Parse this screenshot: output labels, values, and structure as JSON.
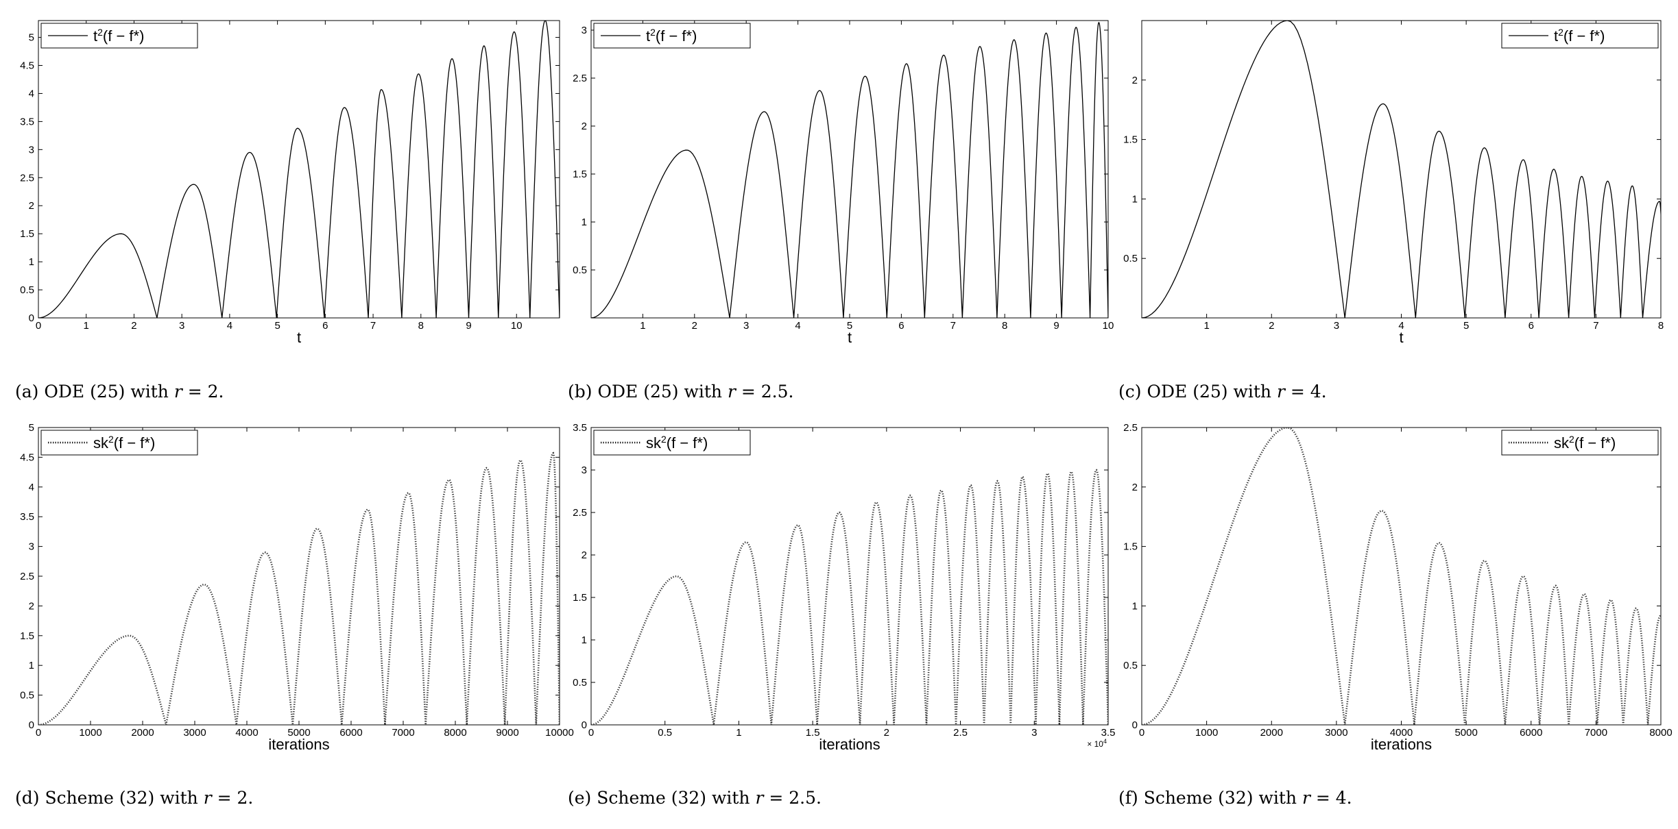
{
  "chart_data": [
    {
      "type": "line",
      "id": "a",
      "caption": {
        "pre": "(a) ODE (25) with ",
        "r": "r",
        "post": " = 2."
      },
      "xlabel": "t",
      "xlim": [
        0,
        10.9
      ],
      "ylim": [
        0,
        5.3
      ],
      "xticks": [
        0,
        1,
        2,
        3,
        4,
        5,
        6,
        7,
        8,
        9,
        10
      ],
      "xticklabels": [
        "0",
        "1",
        "2",
        "3",
        "4",
        "5",
        "6",
        "7",
        "8",
        "9",
        "10"
      ],
      "yticks": [
        0,
        0.5,
        1,
        1.5,
        2,
        2.5,
        3,
        3.5,
        4,
        4.5,
        5
      ],
      "yticklabels": [
        "0",
        "0.5",
        "1",
        "1.5",
        "2",
        "2.5",
        "3",
        "3.5",
        "4",
        "4.5",
        "5"
      ],
      "legend": {
        "position": "top-left",
        "base": "t",
        "sup": "2",
        "rest": "(f − f*)",
        "style": "solid"
      },
      "series": [
        {
          "zeros": [
            0,
            2.48,
            3.84,
            4.98,
            5.98,
            6.9,
            7.6,
            8.32,
            9.0,
            9.62,
            10.28,
            10.9
          ],
          "peaks": [
            [
              1.73,
              1.5
            ],
            [
              3.25,
              2.38
            ],
            [
              4.42,
              2.95
            ],
            [
              5.42,
              3.38
            ],
            [
              6.4,
              3.75
            ],
            [
              7.17,
              4.07
            ],
            [
              7.95,
              4.35
            ],
            [
              8.65,
              4.62
            ],
            [
              9.32,
              4.85
            ],
            [
              9.95,
              5.1
            ],
            [
              10.6,
              5.3
            ]
          ]
        }
      ]
    },
    {
      "type": "line",
      "id": "b",
      "caption": {
        "pre": "(b) ODE (25) with ",
        "r": "r",
        "post": " = 2.5."
      },
      "xlabel": "t",
      "xlim": [
        0,
        10
      ],
      "ylim": [
        0,
        3.1
      ],
      "xticks": [
        1,
        2,
        3,
        4,
        5,
        6,
        7,
        8,
        9,
        10
      ],
      "xticklabels": [
        "1",
        "2",
        "3",
        "4",
        "5",
        "6",
        "7",
        "8",
        "9",
        "10"
      ],
      "yticks": [
        0.5,
        1,
        1.5,
        2,
        2.5,
        3
      ],
      "yticklabels": [
        "0.5",
        "1",
        "1.5",
        "2",
        "2.5",
        "3"
      ],
      "legend": {
        "position": "top-left",
        "base": "t",
        "sup": "2",
        "rest": "(f − f*)",
        "style": "solid"
      },
      "series": [
        {
          "zeros": [
            0,
            2.68,
            3.92,
            4.88,
            5.72,
            6.45,
            7.18,
            7.85,
            8.5,
            9.1,
            9.65,
            10.0
          ],
          "peaks": [
            [
              1.85,
              1.75
            ],
            [
              3.35,
              2.15
            ],
            [
              4.42,
              2.37
            ],
            [
              5.3,
              2.52
            ],
            [
              6.1,
              2.65
            ],
            [
              6.82,
              2.74
            ],
            [
              7.52,
              2.83
            ],
            [
              8.18,
              2.9
            ],
            [
              8.8,
              2.97
            ],
            [
              9.38,
              3.03
            ],
            [
              9.82,
              3.08
            ]
          ]
        }
      ]
    },
    {
      "type": "line",
      "id": "c",
      "caption": {
        "pre": "(c) ODE (25) with ",
        "r": "r",
        "post": " = 4."
      },
      "xlabel": "t",
      "xlim": [
        0,
        8
      ],
      "ylim": [
        0,
        2.5
      ],
      "xticks": [
        1,
        2,
        3,
        4,
        5,
        6,
        7,
        8
      ],
      "xticklabels": [
        "1",
        "2",
        "3",
        "4",
        "5",
        "6",
        "7",
        "8"
      ],
      "yticks": [
        0.5,
        1,
        1.5,
        2
      ],
      "yticklabels": [
        "0.5",
        "1",
        "1.5",
        "2"
      ],
      "legend": {
        "position": "top-right",
        "base": "t",
        "sup": "2",
        "rest": "(f − f*)",
        "style": "solid"
      },
      "series": [
        {
          "zeros": [
            0,
            3.13,
            4.22,
            4.98,
            5.6,
            6.12,
            6.58,
            6.98,
            7.38,
            7.72,
            8.05
          ],
          "peaks": [
            [
              2.25,
              2.5
            ],
            [
              3.72,
              1.8
            ],
            [
              4.58,
              1.57
            ],
            [
              5.28,
              1.43
            ],
            [
              5.88,
              1.33
            ],
            [
              6.35,
              1.25
            ],
            [
              6.78,
              1.19
            ],
            [
              7.18,
              1.15
            ],
            [
              7.56,
              1.11
            ],
            [
              7.98,
              0.98
            ]
          ]
        }
      ]
    },
    {
      "type": "line",
      "id": "d",
      "caption": {
        "pre": "(d) Scheme (32) with ",
        "r": "r",
        "post": " = 2."
      },
      "xlabel": "iterations",
      "xlim": [
        0,
        10000
      ],
      "ylim": [
        0,
        5
      ],
      "xticks": [
        0,
        1000,
        2000,
        3000,
        4000,
        5000,
        6000,
        7000,
        8000,
        9000,
        10000
      ],
      "xticklabels": [
        "0",
        "1000",
        "2000",
        "3000",
        "4000",
        "5000",
        "6000",
        "7000",
        "8000",
        "9000",
        "10000"
      ],
      "yticks": [
        0,
        0.5,
        1,
        1.5,
        2,
        2.5,
        3,
        3.5,
        4,
        4.5,
        5
      ],
      "yticklabels": [
        "0",
        "0.5",
        "1",
        "1.5",
        "2",
        "2.5",
        "3",
        "3.5",
        "4",
        "4.5",
        "5"
      ],
      "legend": {
        "position": "top-left",
        "base": "sk",
        "sup": "2",
        "rest": "(f − f*)",
        "style": "dotted"
      },
      "series": [
        {
          "zeros": [
            0,
            2450,
            3800,
            4880,
            5820,
            6650,
            7430,
            8220,
            8950,
            9550,
            10000
          ],
          "peaks": [
            [
              1750,
              1.5
            ],
            [
              3180,
              2.36
            ],
            [
              4350,
              2.9
            ],
            [
              5350,
              3.3
            ],
            [
              6320,
              3.62
            ],
            [
              7100,
              3.9
            ],
            [
              7880,
              4.12
            ],
            [
              8600,
              4.32
            ],
            [
              9250,
              4.45
            ],
            [
              9880,
              4.57
            ]
          ]
        }
      ]
    },
    {
      "type": "line",
      "id": "e",
      "caption": {
        "pre": "(e) Scheme (32) with ",
        "r": "r",
        "post": " = 2.5."
      },
      "xlabel": "iterations",
      "xlim": [
        0,
        3.5
      ],
      "ylim": [
        0,
        3.5
      ],
      "xticks": [
        0,
        0.5,
        1,
        1.5,
        2,
        2.5,
        3,
        3.5
      ],
      "xticklabels": [
        "0",
        "0.5",
        "1",
        "1.5",
        "2",
        "2.5",
        "3",
        "3.5"
      ],
      "xexponent": {
        "base": "× 10",
        "sup": "4"
      },
      "yticks": [
        0,
        0.5,
        1,
        1.5,
        2,
        2.5,
        3,
        3.5
      ],
      "yticklabels": [
        "0",
        "0.5",
        "1",
        "1.5",
        "2",
        "2.5",
        "3",
        "3.5"
      ],
      "legend": {
        "position": "top-left",
        "base": "sk",
        "sup": "2",
        "rest": "(f − f*)",
        "style": "dotted"
      },
      "series": [
        {
          "zeros": [
            0,
            0.83,
            1.22,
            1.53,
            1.82,
            2.05,
            2.27,
            2.47,
            2.66,
            2.84,
            3.01,
            3.17,
            3.33,
            3.5
          ],
          "peaks": [
            [
              0.58,
              1.75
            ],
            [
              1.05,
              2.15
            ],
            [
              1.4,
              2.35
            ],
            [
              1.68,
              2.5
            ],
            [
              1.93,
              2.62
            ],
            [
              2.16,
              2.7
            ],
            [
              2.37,
              2.76
            ],
            [
              2.57,
              2.82
            ],
            [
              2.75,
              2.87
            ],
            [
              2.92,
              2.92
            ],
            [
              3.09,
              2.96
            ],
            [
              3.25,
              2.98
            ],
            [
              3.42,
              3.0
            ]
          ]
        }
      ]
    },
    {
      "type": "line",
      "id": "f",
      "caption": {
        "pre": "(f) Scheme (32) with ",
        "r": "r",
        "post": " = 4."
      },
      "xlabel": "iterations",
      "xlim": [
        0,
        8000
      ],
      "ylim": [
        0,
        2.5
      ],
      "xticks": [
        0,
        1000,
        2000,
        3000,
        4000,
        5000,
        6000,
        7000,
        8000
      ],
      "xticklabels": [
        "0",
        "1000",
        "2000",
        "3000",
        "4000",
        "5000",
        "6000",
        "7000",
        "8000"
      ],
      "yticks": [
        0,
        0.5,
        1,
        1.5,
        2,
        2.5
      ],
      "yticklabels": [
        "0",
        "0.5",
        "1",
        "1.5",
        "2",
        "2.5"
      ],
      "legend": {
        "position": "top-right",
        "base": "sk",
        "sup": "2",
        "rest": "(f − f*)",
        "style": "dotted"
      },
      "series": [
        {
          "zeros": [
            0,
            3130,
            4200,
            4980,
            5600,
            6130,
            6580,
            7020,
            7420,
            7800,
            8200
          ],
          "peaks": [
            [
              2250,
              2.5
            ],
            [
              3700,
              1.8
            ],
            [
              4580,
              1.53
            ],
            [
              5280,
              1.38
            ],
            [
              5880,
              1.25
            ],
            [
              6380,
              1.17
            ],
            [
              6820,
              1.1
            ],
            [
              7230,
              1.05
            ],
            [
              7620,
              0.98
            ],
            [
              8000,
              0.92
            ]
          ]
        }
      ]
    }
  ]
}
